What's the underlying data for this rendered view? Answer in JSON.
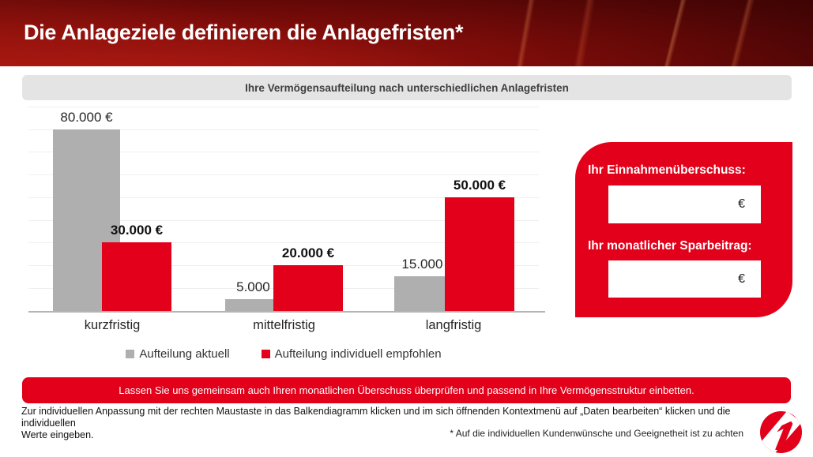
{
  "header": {
    "title": "Die Anlageziele definieren die Anlagefristen*"
  },
  "chart_data": {
    "type": "bar",
    "title": "Ihre Vermögensaufteilung nach unterschiedlichen Anlagefristen",
    "categories": [
      "kurzfristig",
      "mittelfristig",
      "langfristig"
    ],
    "series": [
      {
        "name": "Aufteilung aktuell",
        "color": "#AFAFAF",
        "values": [
          80000,
          5000,
          15000
        ],
        "labels": [
          "80.000 €",
          "5.000 €",
          "15.000 €"
        ],
        "label_bold": false
      },
      {
        "name": "Aufteilung individuell empfohlen",
        "color": "#E2001A",
        "values": [
          30000,
          20000,
          50000
        ],
        "labels": [
          "30.000 €",
          "20.000 €",
          "50.000 €"
        ],
        "label_bold": true
      }
    ],
    "ylim": [
      0,
      90000
    ],
    "gridline_step": 10000,
    "grid": true,
    "legend_position": "bottom"
  },
  "panel": {
    "background": "#E2001A",
    "fields": [
      {
        "label": "Ihr Einnahmenüberschuss:",
        "value": "",
        "suffix": "€"
      },
      {
        "label": "Ihr monatlicher Sparbeitrag:",
        "value": "",
        "suffix": "€"
      }
    ]
  },
  "banner": {
    "background": "#E2001A",
    "text": "Lassen Sie uns gemeinsam auch Ihren monatlichen Überschuss überprüfen und passend in Ihre Vermögensstruktur einbetten."
  },
  "footer": {
    "lines": [
      "Zur individuellen Anpassung mit der rechten Maustaste in das Balkendiagramm klicken und im sich öffnenden Kontextmenü auf „Daten bearbeiten“ klicken und die individuellen",
      "Werte eingeben."
    ],
    "footnote": "* Auf die individuellen Kundenwünsche und Geeignetheit ist zu achten"
  },
  "icons": {
    "logo": "unicredit-1-logo"
  },
  "colors": {
    "accent_red": "#E2001A",
    "bar_gray": "#AFAFAF",
    "title_bar_bg": "#E4E4E4"
  }
}
